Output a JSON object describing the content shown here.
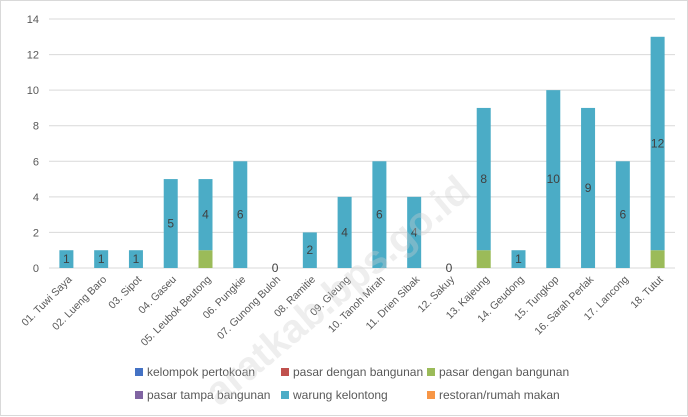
{
  "chart_data": {
    "type": "bar",
    "stacked": true,
    "categories": [
      "01. Tuwi Saya",
      "02. Lueng Baro",
      "03. Sipot",
      "04. Gaseu",
      "05. Leubok Beutong",
      "06. Pungkie",
      "07. Gunong Buloh",
      "08. Ramitie",
      "09. Gleung",
      "10. Tanoh Mirah",
      "11. Drien Sibak",
      "12. Sakuy",
      "13. Kajeung",
      "14. Geudong",
      "15. Tungkop",
      "16. Sarah Perlak",
      "17. Lancong",
      "18. Tutut"
    ],
    "series": [
      {
        "name": "kelompok pertokoan",
        "color": "#4472c4",
        "values": [
          0,
          0,
          0,
          0,
          0,
          0,
          0,
          0,
          0,
          0,
          0,
          0,
          0,
          0,
          0,
          0,
          0,
          0
        ]
      },
      {
        "name": "pasar dengan bangunan",
        "color": "#c0504d",
        "values": [
          0,
          0,
          0,
          0,
          0,
          0,
          0,
          0,
          0,
          0,
          0,
          0,
          0,
          0,
          0,
          0,
          0,
          0
        ]
      },
      {
        "name": "pasar dengan bangunan",
        "color": "#9bbb59",
        "values": [
          0,
          0,
          0,
          0,
          1,
          0,
          0,
          0,
          0,
          0,
          0,
          0,
          1,
          0,
          0,
          0,
          0,
          1
        ]
      },
      {
        "name": "pasar tampa bangunan",
        "color": "#8064a2",
        "values": [
          0,
          0,
          0,
          0,
          0,
          0,
          0,
          0,
          0,
          0,
          0,
          0,
          0,
          0,
          0,
          0,
          0,
          0
        ]
      },
      {
        "name": "warung kelontong",
        "color": "#4bacc6",
        "values": [
          1,
          1,
          1,
          5,
          4,
          6,
          0,
          2,
          4,
          6,
          4,
          0,
          8,
          1,
          10,
          9,
          6,
          12
        ]
      },
      {
        "name": "restoran/rumah makan",
        "color": "#f79646",
        "values": [
          0,
          0,
          0,
          0,
          0,
          0,
          0,
          0,
          0,
          0,
          0,
          0,
          0,
          0,
          0,
          0,
          0,
          0
        ]
      }
    ],
    "data_labels": [
      "1",
      "1",
      "1",
      "5",
      "4",
      "6",
      "0",
      "2",
      "4",
      "6",
      "4",
      "0",
      "8",
      "1",
      "10",
      "9",
      "6",
      "12"
    ],
    "yticks": [
      0,
      2,
      4,
      6,
      8,
      10,
      12,
      14
    ],
    "ylim": [
      0,
      14
    ],
    "grid": true,
    "legend_position": "bottom"
  },
  "watermark": "aratkab.bps.go.id"
}
